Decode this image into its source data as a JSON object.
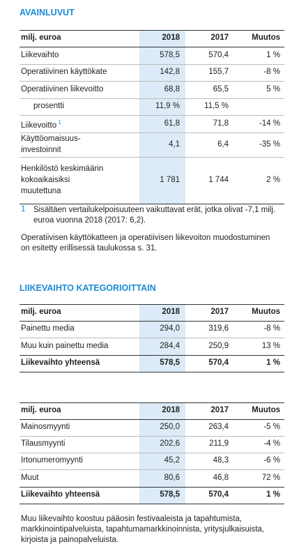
{
  "sections": [
    {
      "title": "AVAINLUVUT",
      "tables": [
        {
          "header": [
            "milj. euroa",
            "2018",
            "2017",
            "Muutos"
          ],
          "rows": [
            {
              "cells": [
                "Liikevaihto",
                "578,5",
                "570,4",
                "1 %"
              ]
            },
            {
              "cells": [
                "Operatiivinen käyttökate",
                "142,8",
                "155,7",
                "-8 %"
              ]
            },
            {
              "cells": [
                "Operatiivinen liikevoitto",
                "68,8",
                "65,5",
                "5 %"
              ]
            },
            {
              "cells": [
                "prosentti",
                "11,9 %",
                "11,5 %",
                null
              ],
              "indent": true
            },
            {
              "cells": [
                "Liikevoitto",
                "61,8",
                "71,8",
                "-14 %"
              ],
              "note": "1"
            },
            {
              "cells": [
                [
                  "Käyttöomaisuus-",
                  "investoinnit"
                ],
                "4,1",
                "6,4",
                "-35 %"
              ]
            },
            {
              "cells": [
                [
                  "Henkilöstö keskimäärin",
                  "kokoaikaisiksi",
                  "muutettuna"
                ],
                "1 781",
                "1 744",
                "2 %"
              ]
            }
          ]
        }
      ],
      "footnote": {
        "marker": "1",
        "text": "Sisältäen vertailukelpoisuuteen vaikuttavat erät, jotka olivat -7,1 milj. euroa vuonna 2018 (2017: 6,2)."
      },
      "paragraph": "Operatiivisen käyttökatteen ja operatiivisen liikevoiton muodostuminen on esitetty erillisessä taulukossa s. 31."
    },
    {
      "title": "LIIKEVAIHTO KATEGORIOITTAIN",
      "tables": [
        {
          "header": [
            "milj. euroa",
            "2018",
            "2017",
            "Muutos"
          ],
          "rows": [
            {
              "cells": [
                "Painettu media",
                "294,0",
                "319,6",
                "-8 %"
              ]
            },
            {
              "cells": [
                "Muu kuin painettu media",
                "284,4",
                "250,9",
                "13 %"
              ]
            },
            {
              "cells": [
                "Liikevaihto yhteensä",
                "578,5",
                "570,4",
                "1 %"
              ],
              "total": true
            }
          ]
        },
        {
          "header": [
            "milj. euroa",
            "2018",
            "2017",
            "Muutos"
          ],
          "rows": [
            {
              "cells": [
                "Mainosmyynti",
                "250,0",
                "263,4",
                "-5 %"
              ]
            },
            {
              "cells": [
                "Tilausmyynti",
                "202,6",
                "211,9",
                "-4 %"
              ]
            },
            {
              "cells": [
                "Irtonumeromyynti",
                "45,2",
                "48,3",
                "-6 %"
              ]
            },
            {
              "cells": [
                "Muut",
                "80,6",
                "46,8",
                "72 %"
              ]
            },
            {
              "cells": [
                "Liikevaihto yhteensä",
                "578,5",
                "570,4",
                "1 %"
              ],
              "total": true
            }
          ]
        }
      ],
      "paragraph": "Muu liikevaihto koostuu pääosin festivaaleista ja tapahtumista, markkinointipalveluista, tapahtumamarkkinoinnista, yritysjulkaisuista, kirjoista ja painopalveluista."
    }
  ]
}
